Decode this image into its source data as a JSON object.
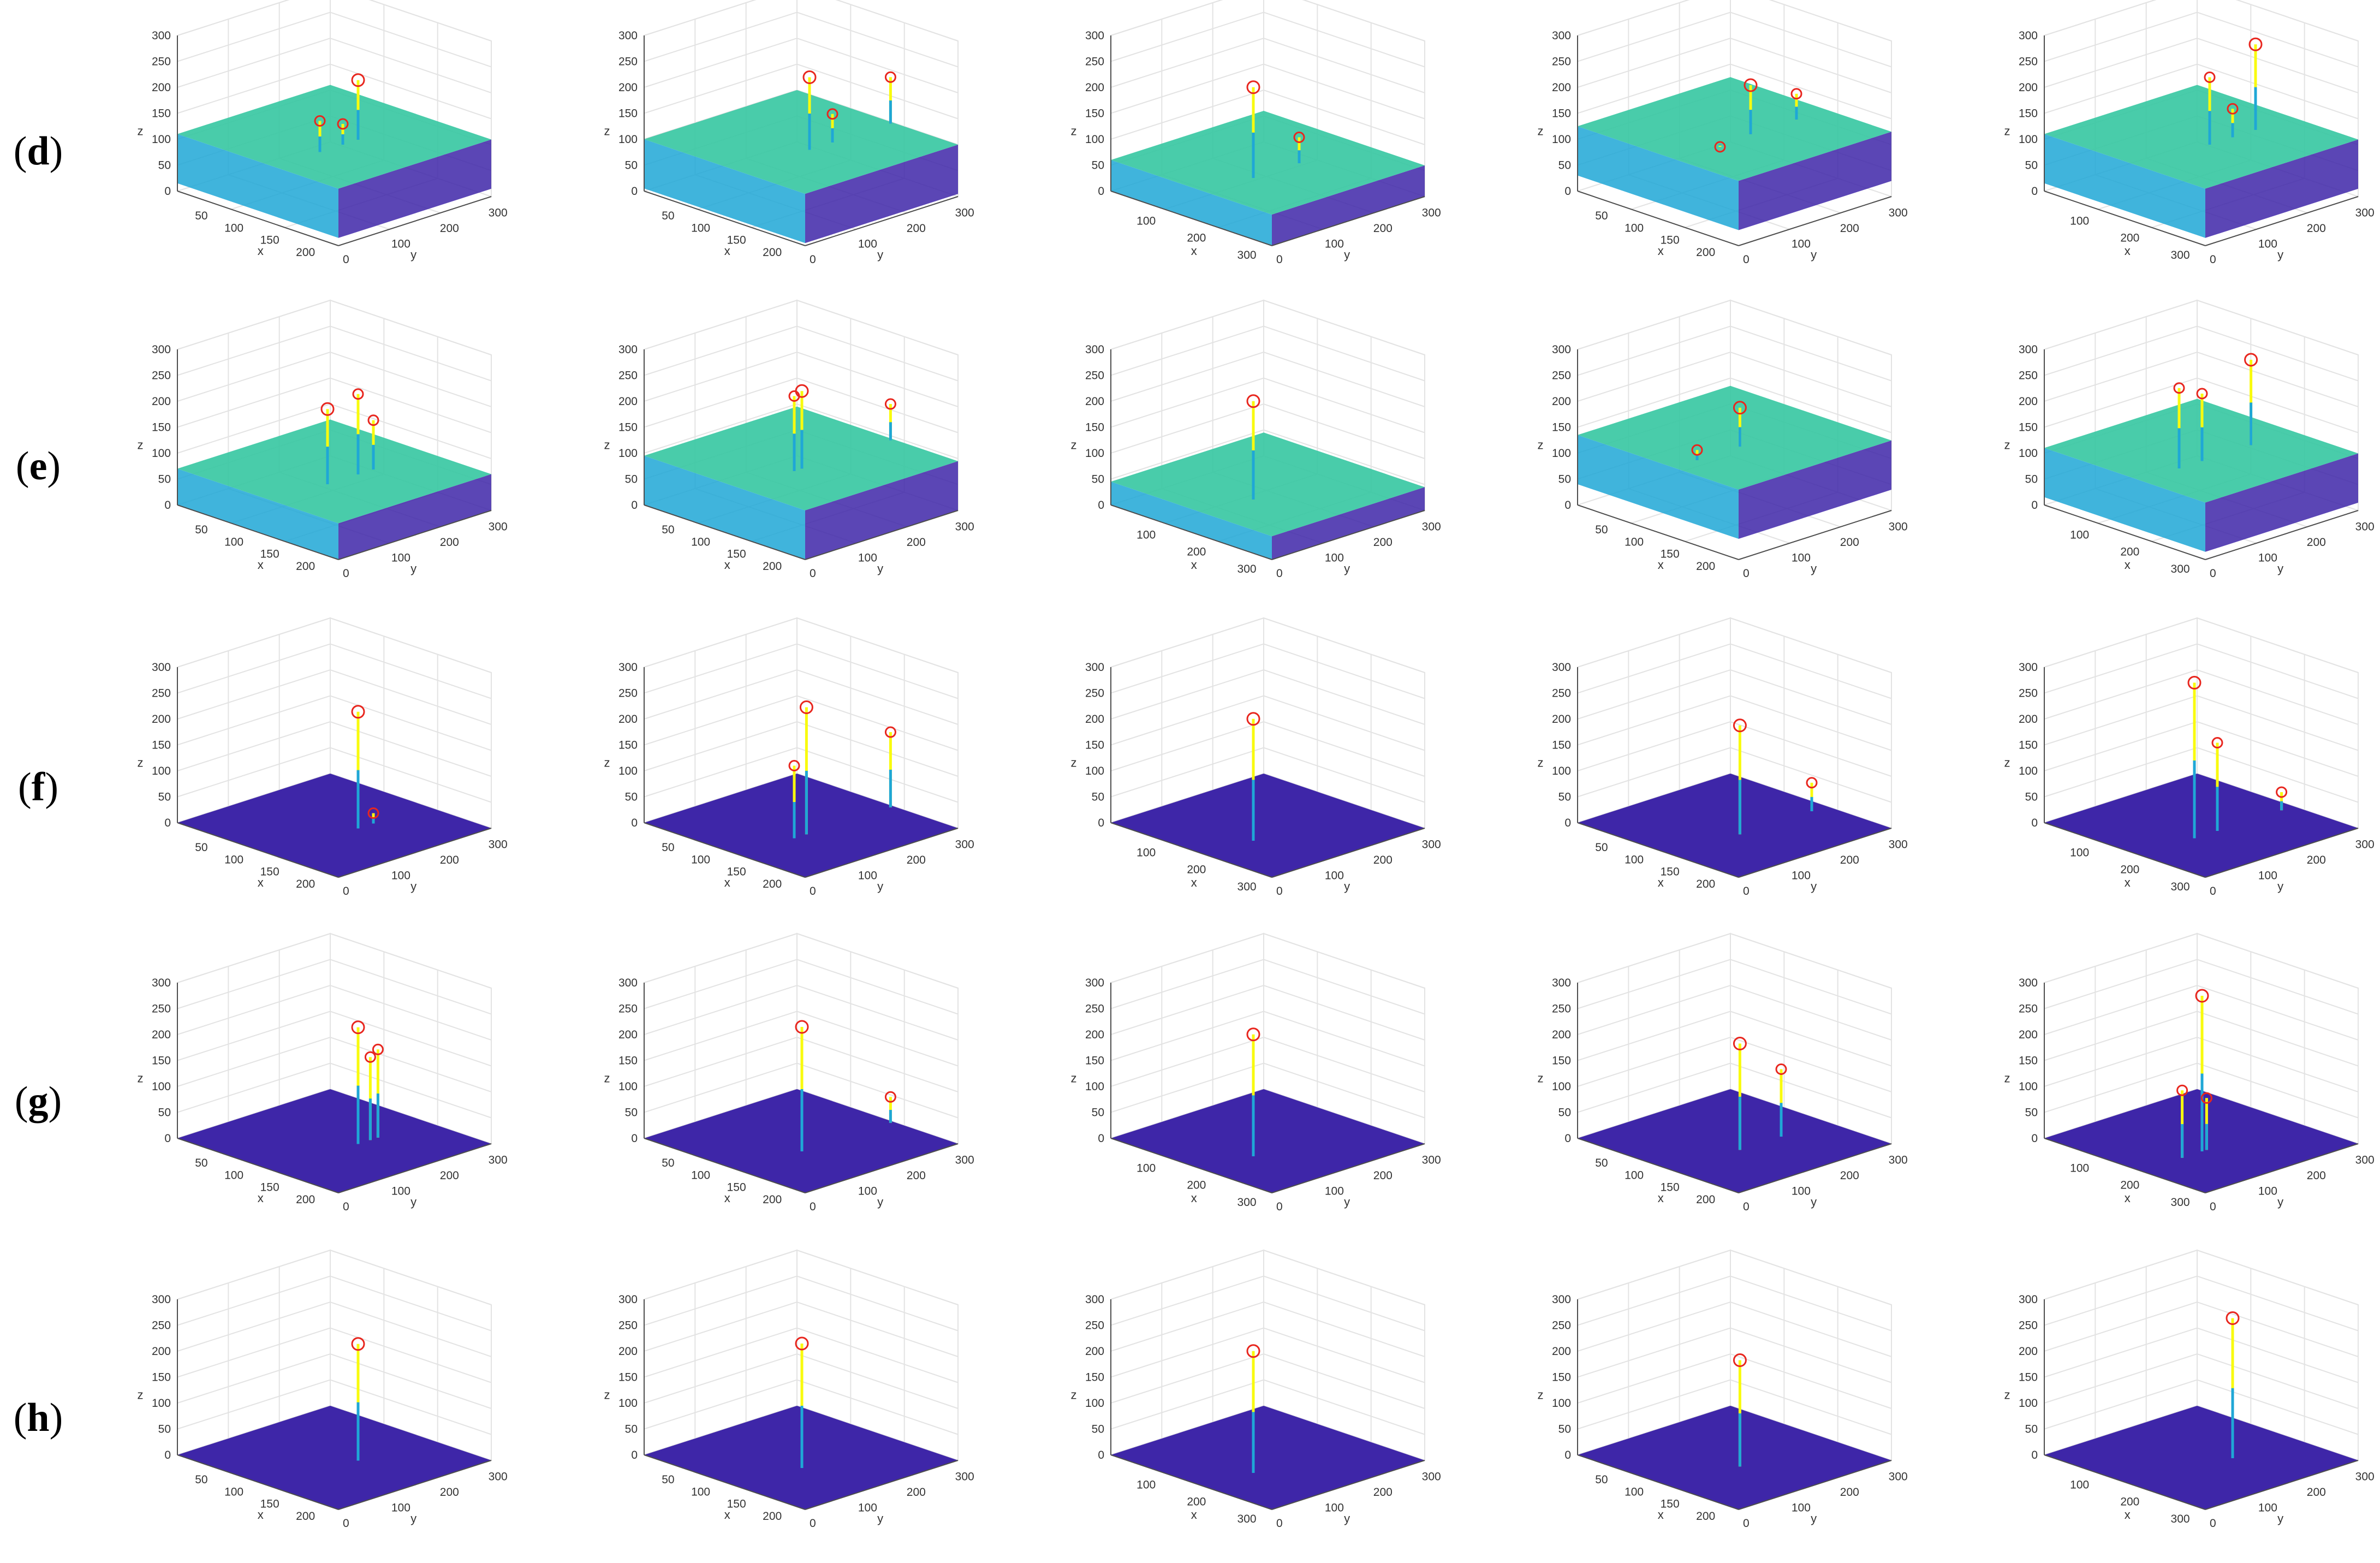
{
  "figure": {
    "rows": [
      {
        "id": "d",
        "label_open": "(",
        "label_letter": "d",
        "label_close": ")"
      },
      {
        "id": "e",
        "label_open": "(",
        "label_letter": "e",
        "label_close": ")"
      },
      {
        "id": "f",
        "label_open": "(",
        "label_letter": "f",
        "label_close": ")"
      },
      {
        "id": "g",
        "label_open": "(",
        "label_letter": "g",
        "label_close": ")"
      },
      {
        "id": "h",
        "label_open": "(",
        "label_letter": "h",
        "label_close": ")"
      }
    ],
    "columns": 5
  },
  "chart_data": {
    "type": "surface3d-grid",
    "axes": {
      "xlabel": "x",
      "ylabel": "y",
      "zlabel": "z",
      "zlim": [
        0,
        300
      ],
      "zticks": [
        "0",
        "50",
        "100",
        "150",
        "200",
        "250",
        "300"
      ],
      "yticks": [
        "0",
        "100",
        "200",
        "300"
      ],
      "xticks_variant_a": [
        "50",
        "100",
        "150",
        "200"
      ],
      "xticks_variant_b": [
        "50",
        "100",
        "150",
        "200"
      ],
      "xticks_variant_c": [
        "100",
        "200",
        "300"
      ],
      "grid": true
    },
    "column_x_variant": [
      "a",
      "b",
      "c",
      "b",
      "c"
    ],
    "colors": {
      "low": "#3e26a8",
      "mid": "#1fa7d6",
      "high": "#35c7a1",
      "peak": "#f9fb0e",
      "marker": "#e8261e",
      "axis": "#4d4d4d",
      "grid": "#e3e3e3"
    },
    "rows": [
      {
        "id": "d",
        "baseline": [
          110,
          100,
          60,
          125,
          110
        ],
        "peaks": [
          [
            {
              "z": 225,
              "u": 0.55
            },
            {
              "z": 170,
              "u": 0.3
            },
            {
              "z": 150,
              "u": 0.45
            }
          ],
          [
            {
              "z": 240,
              "u": 0.45
            },
            {
              "z": 190,
              "u": 0.98
            },
            {
              "z": 155,
              "u": 0.6
            }
          ],
          [
            {
              "z": 235,
              "u": 0.3
            },
            {
              "z": 110,
              "u": 0.6
            }
          ],
          [
            {
              "z": 220,
              "u": 0.5
            },
            {
              "z": 175,
              "u": 0.8
            },
            {
              "z": 120,
              "u": 0.3
            }
          ],
          [
            {
              "z": 275,
              "u": 0.75
            },
            {
              "z": 240,
              "u": 0.45
            },
            {
              "z": 165,
              "u": 0.6
            }
          ]
        ]
      },
      {
        "id": "e",
        "baseline": [
          70,
          95,
          45,
          135,
          110
        ],
        "peaks": [
          [
            {
              "z": 215,
              "u": 0.35
            },
            {
              "z": 225,
              "u": 0.55
            },
            {
              "z": 165,
              "u": 0.65
            }
          ],
          [
            {
              "z": 245,
              "u": 0.4
            },
            {
              "z": 240,
              "u": 0.35
            },
            {
              "z": 165,
              "u": 0.98
            }
          ],
          [
            {
              "z": 235,
              "u": 0.3
            }
          ],
          [
            {
              "z": 210,
              "u": 0.43
            },
            {
              "z": 155,
              "u": 0.15
            }
          ],
          [
            {
              "z": 275,
              "u": 0.72
            },
            {
              "z": 265,
              "u": 0.25
            },
            {
              "z": 240,
              "u": 0.4
            }
          ]
        ]
      },
      {
        "id": "f",
        "baseline": [
          0,
          0,
          0,
          0,
          0
        ],
        "peaks": [
          [
            {
              "z": 225,
              "u": 0.55
            },
            {
              "z": 20,
              "u": 0.65
            }
          ],
          [
            {
              "z": 245,
              "u": 0.43
            },
            {
              "z": 145,
              "u": 0.98
            },
            {
              "z": 140,
              "u": 0.35
            }
          ],
          [
            {
              "z": 235,
              "u": 0.3
            }
          ],
          [
            {
              "z": 210,
              "u": 0.43
            },
            {
              "z": 55,
              "u": 0.9
            }
          ],
          [
            {
              "z": 300,
              "u": 0.35
            },
            {
              "z": 170,
              "u": 0.5
            },
            {
              "z": 35,
              "u": 0.92
            }
          ]
        ]
      },
      {
        "id": "g",
        "baseline": [
          0,
          0,
          0,
          0,
          0
        ],
        "peaks": [
          [
            {
              "z": 225,
              "u": 0.55
            },
            {
              "z": 170,
              "u": 0.68
            },
            {
              "z": 160,
              "u": 0.63
            }
          ],
          [
            {
              "z": 240,
              "u": 0.4
            },
            {
              "z": 50,
              "u": 0.98
            }
          ],
          [
            {
              "z": 235,
              "u": 0.3
            }
          ],
          [
            {
              "z": 205,
              "u": 0.43
            },
            {
              "z": 130,
              "u": 0.7
            }
          ],
          [
            {
              "z": 300,
              "u": 0.4
            },
            {
              "z": 130,
              "u": 0.27
            },
            {
              "z": 100,
              "u": 0.43
            }
          ]
        ]
      },
      {
        "id": "h",
        "baseline": [
          0,
          0,
          0,
          0,
          0
        ],
        "peaks": [
          [
            {
              "z": 225,
              "u": 0.55
            }
          ],
          [
            {
              "z": 240,
              "u": 0.4
            }
          ],
          [
            {
              "z": 235,
              "u": 0.3
            }
          ],
          [
            {
              "z": 205,
              "u": 0.43
            }
          ],
          [
            {
              "z": 270,
              "u": 0.6
            }
          ]
        ]
      }
    ]
  }
}
